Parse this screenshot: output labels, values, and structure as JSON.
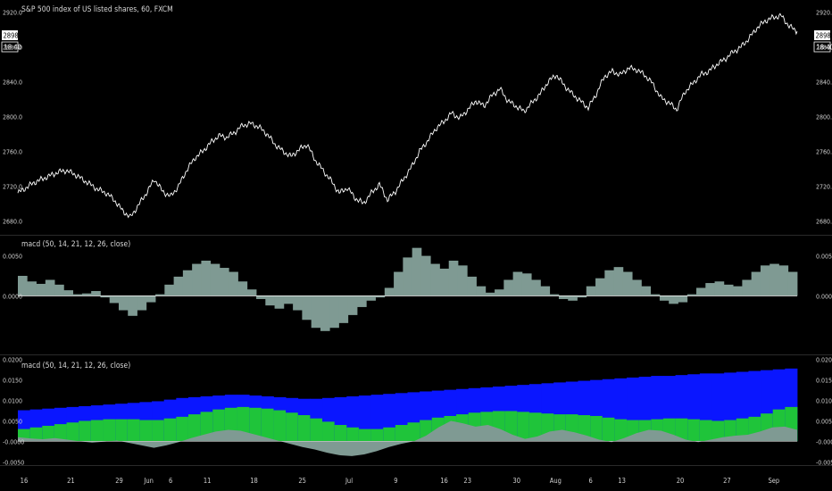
{
  "colors": {
    "background": "#000000",
    "price_line": "#ffffff",
    "hist": "#7f9a93",
    "band_green": "#1fc43a",
    "band_blue": "#0a16ff",
    "separator": "#2a2a2a",
    "text": "#d0d0d0"
  },
  "chart_data": [
    {
      "type": "line",
      "title": "S&P 500 index of US listed shares, 60, FXCM",
      "symbol_price": "2898.3",
      "symbol_time": "18:40",
      "yticks": [
        2680.0,
        2720.0,
        2760.0,
        2800.0,
        2840.0,
        2880.0,
        2920.0
      ],
      "ytick_labels": [
        "2680.0",
        "2720.0",
        "2760.0",
        "2800.0",
        "2840.0",
        "2880.0",
        "2920.0"
      ],
      "ylim": [
        2665,
        2930
      ],
      "series": [
        {
          "values": [
            2712,
            2718,
            2724,
            2728,
            2732,
            2736,
            2738,
            2734,
            2728,
            2722,
            2716,
            2712,
            2704,
            2692,
            2684,
            2698,
            2712,
            2728,
            2714,
            2708,
            2720,
            2738,
            2752,
            2760,
            2770,
            2778,
            2776,
            2782,
            2790,
            2792,
            2788,
            2780,
            2768,
            2760,
            2754,
            2762,
            2768,
            2750,
            2738,
            2726,
            2712,
            2718,
            2706,
            2700,
            2712,
            2722,
            2704,
            2714,
            2728,
            2742,
            2760,
            2772,
            2786,
            2794,
            2804,
            2798,
            2808,
            2818,
            2812,
            2824,
            2832,
            2818,
            2812,
            2806,
            2816,
            2826,
            2840,
            2848,
            2836,
            2826,
            2818,
            2810,
            2826,
            2846,
            2852,
            2848,
            2856,
            2854,
            2848,
            2838,
            2822,
            2816,
            2808,
            2828,
            2838,
            2848,
            2852,
            2860,
            2866,
            2874,
            2880,
            2890,
            2902,
            2910,
            2914,
            2916,
            2904,
            2898
          ]
        }
      ]
    },
    {
      "type": "bar",
      "title": "macd (50, 14, 21, 12, 26, close)",
      "yticks": [
        0.005,
        0.0
      ],
      "ytick_labels": [
        "0.0050",
        "0.0000"
      ],
      "ylim": [
        -0.0071,
        0.0073
      ],
      "values": [
        0.0025,
        0.0018,
        0.0015,
        0.002,
        0.0014,
        0.0007,
        0.0002,
        0.0003,
        0.0006,
        -0.0002,
        -0.0009,
        -0.0018,
        -0.0025,
        -0.0018,
        -0.0008,
        0.0002,
        0.0014,
        0.0024,
        0.0032,
        0.004,
        0.0044,
        0.004,
        0.0035,
        0.003,
        0.0018,
        0.0008,
        -0.0004,
        -0.0012,
        -0.0016,
        -0.001,
        -0.0018,
        -0.003,
        -0.004,
        -0.0044,
        -0.004,
        -0.0034,
        -0.0024,
        -0.0014,
        -0.0006,
        -0.0002,
        0.001,
        0.003,
        0.0048,
        0.006,
        0.005,
        0.004,
        0.0034,
        0.0044,
        0.0038,
        0.0024,
        0.0012,
        0.0004,
        0.0008,
        0.002,
        0.003,
        0.0028,
        0.002,
        0.0012,
        0.0002,
        -0.0004,
        -0.0006,
        -0.0002,
        0.0012,
        0.0022,
        0.0032,
        0.0036,
        0.003,
        0.002,
        0.0012,
        0.0002,
        -0.0006,
        -0.001,
        -0.0008,
        0.0002,
        0.001,
        0.0016,
        0.0018,
        0.0014,
        0.0012,
        0.002,
        0.003,
        0.0038,
        0.004,
        0.0038,
        0.003
      ]
    },
    {
      "type": "area",
      "title": "macd (50, 14, 21, 12, 26, close)",
      "yticks": [
        0.02,
        0.015,
        0.01,
        0.005,
        0.0,
        -0.005
      ],
      "ytick_labels": [
        "0.0200",
        "0.0150",
        "0.0100",
        "0.0050",
        "-0.0000",
        "-0.0050"
      ],
      "ylim": [
        -0.0056,
        0.0206
      ],
      "xticks": [
        {
          "x": 0.008,
          "label": "16"
        },
        {
          "x": 0.068,
          "label": "21"
        },
        {
          "x": 0.13,
          "label": "29"
        },
        {
          "x": 0.168,
          "label": "Jun"
        },
        {
          "x": 0.196,
          "label": "6"
        },
        {
          "x": 0.243,
          "label": "11"
        },
        {
          "x": 0.303,
          "label": "18"
        },
        {
          "x": 0.365,
          "label": "25"
        },
        {
          "x": 0.425,
          "label": "Jul"
        },
        {
          "x": 0.485,
          "label": "9"
        },
        {
          "x": 0.547,
          "label": "16"
        },
        {
          "x": 0.577,
          "label": "23"
        },
        {
          "x": 0.64,
          "label": "30"
        },
        {
          "x": 0.69,
          "label": "Aug"
        },
        {
          "x": 0.735,
          "label": "6"
        },
        {
          "x": 0.775,
          "label": "13"
        },
        {
          "x": 0.85,
          "label": "20"
        },
        {
          "x": 0.91,
          "label": "27"
        },
        {
          "x": 0.97,
          "label": "Sep"
        }
      ],
      "hist_values": [
        0.001,
        0.0007,
        0.0005,
        0.0008,
        0.0004,
        0.0,
        -0.0003,
        -0.0001,
        0.0002,
        -0.0004,
        -0.001,
        -0.0016,
        -0.001,
        -0.0002,
        0.0008,
        0.0016,
        0.0024,
        0.0028,
        0.0026,
        0.0018,
        0.001,
        0.0002,
        -0.0006,
        -0.0014,
        -0.002,
        -0.0028,
        -0.0034,
        -0.0036,
        -0.0032,
        -0.0024,
        -0.0014,
        -0.0006,
        0.0,
        0.0014,
        0.0034,
        0.005,
        0.0044,
        0.0036,
        0.004,
        0.003,
        0.0016,
        0.0006,
        0.0012,
        0.0024,
        0.0028,
        0.0022,
        0.0014,
        0.0004,
        -0.0002,
        0.0008,
        0.002,
        0.0028,
        0.0026,
        0.0016,
        0.0004,
        -0.0002,
        0.0004,
        0.001,
        0.0014,
        0.0016,
        0.0024,
        0.0034,
        0.0036,
        0.0028
      ],
      "green_values": [
        0.003,
        0.0034,
        0.0038,
        0.0042,
        0.0046,
        0.005,
        0.0052,
        0.0054,
        0.0054,
        0.0054,
        0.0052,
        0.0052,
        0.0056,
        0.006,
        0.0066,
        0.0072,
        0.0078,
        0.0082,
        0.0084,
        0.0082,
        0.008,
        0.0076,
        0.007,
        0.0064,
        0.0056,
        0.0048,
        0.004,
        0.0034,
        0.003,
        0.003,
        0.0034,
        0.004,
        0.0046,
        0.0052,
        0.0058,
        0.0062,
        0.0066,
        0.007,
        0.0072,
        0.0074,
        0.0074,
        0.0072,
        0.007,
        0.0068,
        0.0066,
        0.0066,
        0.0064,
        0.0062,
        0.0058,
        0.0054,
        0.0052,
        0.0052,
        0.0054,
        0.0056,
        0.0056,
        0.0054,
        0.0052,
        0.005,
        0.0052,
        0.0056,
        0.006,
        0.0068,
        0.0078,
        0.0084
      ],
      "blue_values": [
        0.0076,
        0.0078,
        0.008,
        0.0082,
        0.0084,
        0.0086,
        0.0088,
        0.009,
        0.0092,
        0.0094,
        0.0096,
        0.0098,
        0.0102,
        0.0106,
        0.0108,
        0.011,
        0.0112,
        0.0114,
        0.0114,
        0.0112,
        0.011,
        0.0108,
        0.0106,
        0.0104,
        0.0104,
        0.0106,
        0.0108,
        0.011,
        0.0112,
        0.0114,
        0.0116,
        0.0118,
        0.012,
        0.0122,
        0.0124,
        0.0126,
        0.0128,
        0.013,
        0.0132,
        0.0134,
        0.0136,
        0.0138,
        0.014,
        0.0142,
        0.0144,
        0.0146,
        0.0148,
        0.015,
        0.0152,
        0.0154,
        0.0156,
        0.0158,
        0.016,
        0.016,
        0.0162,
        0.0164,
        0.0166,
        0.0166,
        0.0168,
        0.017,
        0.0172,
        0.0174,
        0.0176,
        0.0178
      ]
    }
  ]
}
